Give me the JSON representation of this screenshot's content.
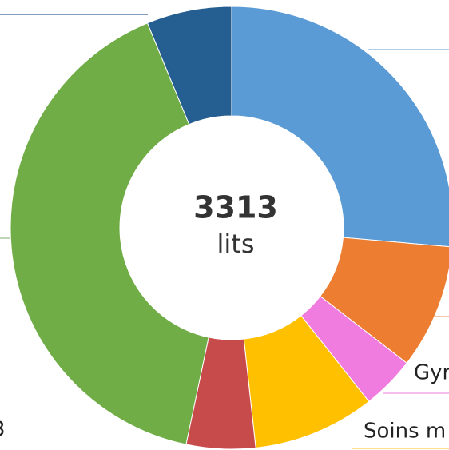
{
  "chart_data": {
    "type": "donut",
    "center_value": 3313,
    "center_label": "lits",
    "categories": [
      null,
      null,
      null,
      null,
      null,
      null,
      null
    ],
    "series": [
      {
        "values": [
          874,
          301,
          129,
          295,
          167,
          1341,
          206
        ],
        "colors": [
          "#5b9bd5",
          "#ed7d31",
          "#f07ce0",
          "#ffc000",
          "#c84b4b",
          "#70ad47",
          "#255e91"
        ]
      }
    ],
    "annotations": [
      "Gyr",
      "Soins m",
      "3"
    ]
  }
}
